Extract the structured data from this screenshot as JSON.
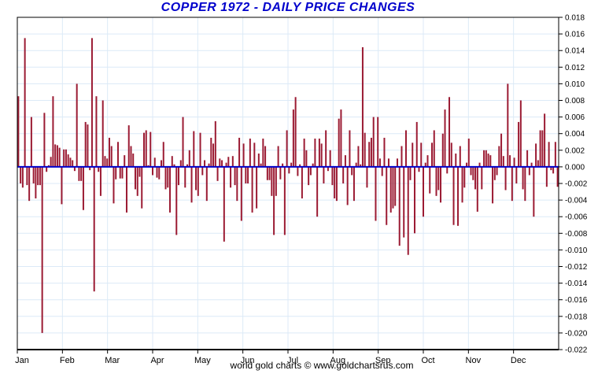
{
  "title": "COPPER 1972 - DAILY PRICE CHANGES",
  "footer": "world gold charts © www.goldchartsrus.com",
  "chart_data": {
    "type": "bar",
    "title": "COPPER 1972 - DAILY PRICE CHANGES",
    "xlabel": "",
    "ylabel": "",
    "series_name": "daily price change",
    "x_tick_labels": [
      "Jan",
      "Feb",
      "Mar",
      "Apr",
      "May",
      "Jun",
      "Jul",
      "Aug",
      "Sep",
      "Oct",
      "Nov",
      "Dec"
    ],
    "y_ticks": [
      0.018,
      0.016,
      0.014,
      0.012,
      0.01,
      0.008,
      0.006,
      0.004,
      0.002,
      0.0,
      -0.002,
      -0.004,
      -0.006,
      -0.008,
      -0.01,
      -0.012,
      -0.014,
      -0.016,
      -0.018,
      -0.02,
      -0.022
    ],
    "ylim": [
      -0.022,
      0.018
    ],
    "zero_line": 0.0,
    "grid": true,
    "legend_position": "none",
    "colors": {
      "bar": "#9B1B33",
      "zero_line": "#0000CC",
      "grid": "#DCEAF7",
      "axis": "#000000",
      "text": "#000000",
      "title": "#0000CC",
      "background": "#FFFFFF"
    },
    "values": [
      0.0085,
      -0.002,
      -0.0025,
      0.0155,
      -0.0022,
      -0.0041,
      0.006,
      -0.002,
      -0.0038,
      -0.0022,
      -0.0022,
      -0.02,
      0.0065,
      -0.0006,
      0.0002,
      0.0012,
      0.0085,
      0.0027,
      0.0026,
      0.0023,
      -0.0045,
      0.0021,
      0.0021,
      0.0015,
      0.0011,
      0.0008,
      -0.0005,
      0.01,
      -0.0017,
      -0.0017,
      -0.0052,
      0.0054,
      0.0051,
      -0.0004,
      0.0155,
      -0.015,
      0.0085,
      -0.0006,
      -0.0035,
      0.008,
      0.0013,
      0.001,
      0.0035,
      0.0025,
      -0.0044,
      -0.0015,
      0.003,
      -0.0014,
      -0.0014,
      0.0014,
      -0.0055,
      0.005,
      0.0025,
      0.0016,
      -0.0027,
      -0.0035,
      -0.0012,
      -0.005,
      0.0041,
      0.0044,
      0.0002,
      0.0042,
      -0.001,
      0.0011,
      -0.0013,
      -0.0015,
      0.0008,
      0.003,
      -0.0027,
      -0.0025,
      -0.0055,
      0.0013,
      0.0003,
      -0.0082,
      -0.0022,
      0.0008,
      0.006,
      -0.0025,
      0.0003,
      0.002,
      -0.0043,
      0.0043,
      -0.0028,
      -0.0035,
      0.0041,
      -0.001,
      0.0008,
      -0.0041,
      0.0004,
      0.0035,
      0.0028,
      0.0055,
      -0.0017,
      0.001,
      0.0008,
      -0.009,
      0.0005,
      0.0012,
      -0.0025,
      0.0013,
      -0.0022,
      -0.0041,
      0.0035,
      -0.0065,
      0.0028,
      -0.002,
      -0.002,
      0.0034,
      -0.0055,
      0.0029,
      -0.005,
      0.0016,
      0.0004,
      0.0034,
      0.0025,
      -0.0016,
      -0.0016,
      -0.0035,
      -0.0082,
      -0.0035,
      0.0025,
      -0.0015,
      0.0004,
      -0.0082,
      0.0044,
      -0.0008,
      0.0005,
      0.0069,
      0.0084,
      -0.0011,
      0.0003,
      -0.0038,
      0.0034,
      0.002,
      -0.0022,
      -0.001,
      0.0004,
      0.0034,
      -0.006,
      0.0034,
      0.0028,
      -0.002,
      0.0044,
      -0.0005,
      0.002,
      -0.0022,
      -0.0038,
      -0.0041,
      0.0058,
      0.0069,
      -0.002,
      0.0014,
      -0.0046,
      0.0044,
      -0.001,
      -0.0041,
      0.0005,
      0.0025,
      0.0003,
      0.0144,
      0.0041,
      -0.0025,
      0.003,
      0.0035,
      0.006,
      -0.0065,
      0.006,
      0.001,
      -0.0011,
      0.0035,
      -0.007,
      0.001,
      -0.0055,
      -0.005,
      -0.0047,
      0.001,
      -0.0095,
      0.0025,
      -0.0085,
      0.0044,
      -0.0106,
      -0.0016,
      0.0029,
      -0.008,
      0.0054,
      -0.0006,
      0.0029,
      -0.006,
      0.0005,
      0.0014,
      -0.0032,
      0.0029,
      0.0044,
      -0.0035,
      -0.0028,
      -0.0043,
      0.004,
      0.0069,
      -0.0008,
      0.0084,
      0.0029,
      -0.007,
      0.0016,
      -0.0071,
      0.0025,
      -0.0043,
      -0.0025,
      0.0005,
      0.0034,
      -0.001,
      -0.0016,
      -0.0027,
      -0.0054,
      0.0005,
      -0.0027,
      0.002,
      0.002,
      0.0016,
      0.0014,
      -0.0044,
      -0.0016,
      -0.001,
      0.0025,
      0.004,
      0.0013,
      -0.0028,
      0.01,
      0.0014,
      -0.0041,
      0.0011,
      -0.002,
      0.0054,
      0.008,
      -0.0027,
      -0.0041,
      0.002,
      -0.001,
      0.0005,
      -0.006,
      0.0028,
      0.0008,
      0.0044,
      0.0044,
      0.0064,
      -0.0024,
      0.003,
      -0.0004,
      -0.0008,
      0.003,
      -0.0024
    ]
  }
}
